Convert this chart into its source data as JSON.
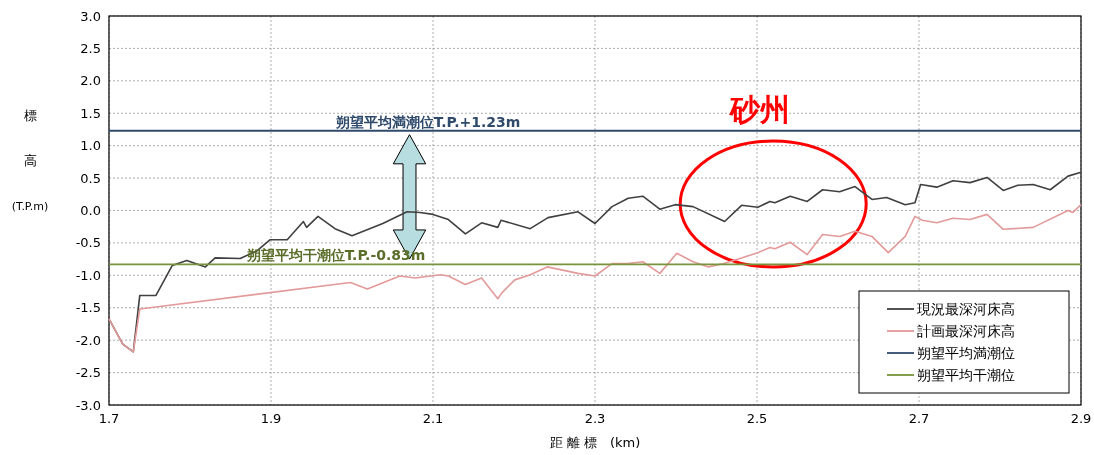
{
  "chart_data": {
    "type": "line",
    "xlabel": "距 離 標　(km)",
    "ylabel": "標高(T.P.m)",
    "xlim": [
      1.7,
      2.9
    ],
    "xticks": [
      1.7,
      1.9,
      2.1,
      2.3,
      2.5,
      2.7,
      2.9
    ],
    "ylim": [
      -3,
      3
    ],
    "yticks": [
      {
        "value": -3,
        "label": "-3.0"
      },
      {
        "value": -2.5,
        "label": "-2.5"
      },
      {
        "value": -2,
        "label": "-2.0"
      },
      {
        "value": -1.5,
        "label": "-1.5"
      },
      {
        "value": -1,
        "label": "-1.0"
      },
      {
        "value": -0.5,
        "label": "-0.5"
      },
      {
        "value": 0,
        "label": "0.0"
      },
      {
        "value": 0.5,
        "label": "0.5"
      },
      {
        "value": 1,
        "label": "1.0"
      },
      {
        "value": 1.5,
        "label": "1.5"
      },
      {
        "value": 2,
        "label": "2.0"
      },
      {
        "value": 2.5,
        "label": "2.5"
      },
      {
        "value": 3,
        "label": "3.0"
      }
    ],
    "grid": true,
    "legend": "bottom right",
    "marker": "none",
    "line_style": "solid",
    "series": [
      {
        "name": "現況最深河床高",
        "color": "#404040",
        "x": [
          1.7,
          1.717,
          1.73,
          1.738,
          1.758,
          1.778,
          1.796,
          1.819,
          1.831,
          1.862,
          1.883,
          1.899,
          1.92,
          1.94,
          1.944,
          1.958,
          1.979,
          2.0,
          2.038,
          2.068,
          2.084,
          2.1,
          2.119,
          2.14,
          2.16,
          2.18,
          2.184,
          2.22,
          2.242,
          2.279,
          2.3,
          2.321,
          2.341,
          2.359,
          2.38,
          2.399,
          2.421,
          2.46,
          2.481,
          2.501,
          2.516,
          2.522,
          2.541,
          2.562,
          2.581,
          2.602,
          2.621,
          2.642,
          2.66,
          2.683,
          2.695,
          2.702,
          2.722,
          2.742,
          2.763,
          2.784,
          2.804,
          2.822,
          2.841,
          2.862,
          2.884,
          2.9
        ],
        "values": [
          -1.67,
          -2.06,
          -2.18,
          -1.31,
          -1.31,
          -0.85,
          -0.77,
          -0.87,
          -0.73,
          -0.74,
          -0.62,
          -0.45,
          -0.45,
          -0.17,
          -0.26,
          -0.09,
          -0.28,
          -0.39,
          -0.2,
          -0.02,
          -0.03,
          -0.06,
          -0.14,
          -0.36,
          -0.19,
          -0.26,
          -0.15,
          -0.28,
          -0.11,
          -0.02,
          -0.2,
          0.06,
          0.19,
          0.22,
          0.02,
          0.09,
          0.06,
          -0.17,
          0.08,
          0.05,
          0.14,
          0.12,
          0.22,
          0.14,
          0.32,
          0.29,
          0.37,
          0.17,
          0.2,
          0.09,
          0.12,
          0.4,
          0.36,
          0.46,
          0.43,
          0.51,
          0.31,
          0.39,
          0.4,
          0.32,
          0.53,
          0.59
        ]
      },
      {
        "name": "計画最深河床高",
        "color": "#e39a9a",
        "x": [
          1.7,
          1.717,
          1.73,
          1.738,
          1.998,
          2.019,
          2.059,
          2.078,
          2.109,
          2.119,
          2.14,
          2.16,
          2.18,
          2.185,
          2.201,
          2.22,
          2.241,
          2.279,
          2.3,
          2.321,
          2.34,
          2.359,
          2.38,
          2.401,
          2.421,
          2.44,
          2.458,
          2.479,
          2.501,
          2.516,
          2.522,
          2.541,
          2.562,
          2.581,
          2.602,
          2.621,
          2.642,
          2.662,
          2.683,
          2.695,
          2.704,
          2.722,
          2.742,
          2.763,
          2.784,
          2.804,
          2.841,
          2.884,
          2.89,
          2.9
        ],
        "values": [
          -1.67,
          -2.06,
          -2.18,
          -1.52,
          -1.11,
          -1.21,
          -1.01,
          -1.04,
          -0.99,
          -1.01,
          -1.14,
          -1.04,
          -1.36,
          -1.27,
          -1.07,
          -0.99,
          -0.87,
          -0.97,
          -1.01,
          -0.82,
          -0.82,
          -0.79,
          -0.97,
          -0.66,
          -0.79,
          -0.87,
          -0.82,
          -0.74,
          -0.65,
          -0.57,
          -0.59,
          -0.49,
          -0.68,
          -0.37,
          -0.4,
          -0.32,
          -0.4,
          -0.65,
          -0.4,
          -0.09,
          -0.15,
          -0.19,
          -0.12,
          -0.14,
          -0.06,
          -0.29,
          -0.26,
          0.0,
          -0.03,
          0.09
        ]
      },
      {
        "name": "朔望平均満潮位",
        "color": "#2f4a6b",
        "x": [
          1.7,
          2.9
        ],
        "values": [
          1.23,
          1.23
        ]
      },
      {
        "name": "朔望平均干潮位",
        "color": "#77933c",
        "x": [
          1.7,
          2.9
        ],
        "values": [
          -0.83,
          -0.83
        ]
      }
    ],
    "annotations": [
      {
        "text": "朔望平均満潮位T.P.+1.23m",
        "x": 1.98,
        "y": 1.23
      },
      {
        "text": "朔望平均干潮位T.P.-0.83m",
        "x": 1.87,
        "y": -0.83
      },
      "砂州"
    ]
  }
}
